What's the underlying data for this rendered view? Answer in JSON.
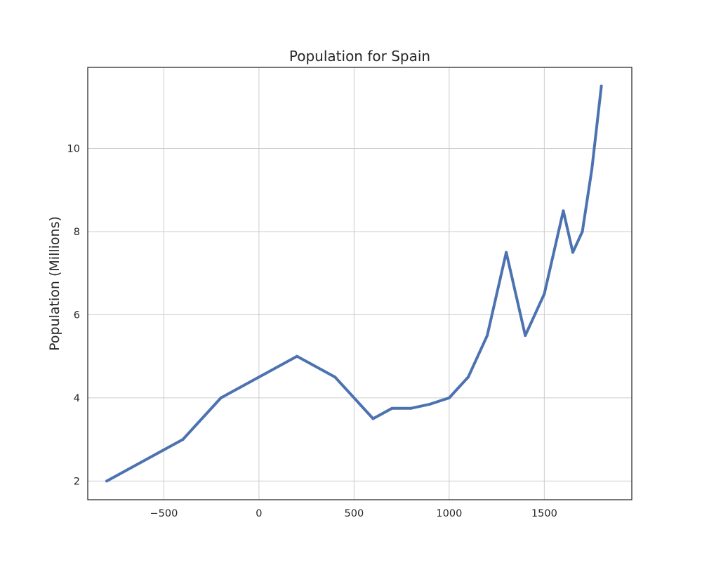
{
  "chart_data": {
    "type": "line",
    "title": "Population for Spain",
    "xlabel": "",
    "ylabel": "Population (Millions)",
    "xlim": [
      -900,
      1960
    ],
    "ylim": [
      1.55,
      11.95
    ],
    "x_ticks": [
      -500,
      0,
      500,
      1000,
      1500
    ],
    "x_tick_labels": [
      "−500",
      "0",
      "500",
      "1000",
      "1500"
    ],
    "y_ticks": [
      2,
      4,
      6,
      8,
      10
    ],
    "y_tick_labels": [
      "2",
      "4",
      "6",
      "8",
      "10"
    ],
    "grid": true,
    "legend": "none",
    "series": [
      {
        "color": "#4c72b0",
        "x": [
          -800,
          -400,
          -200,
          0,
          200,
          400,
          600,
          700,
          800,
          900,
          1000,
          1100,
          1200,
          1300,
          1400,
          1500,
          1600,
          1650,
          1700,
          1750,
          1800
        ],
        "values": [
          2.0,
          3.0,
          4.0,
          4.5,
          5.0,
          4.5,
          3.5,
          3.75,
          3.75,
          3.85,
          4.0,
          4.5,
          5.5,
          7.5,
          5.5,
          6.5,
          8.5,
          7.5,
          8.0,
          9.5,
          11.5
        ]
      }
    ]
  }
}
